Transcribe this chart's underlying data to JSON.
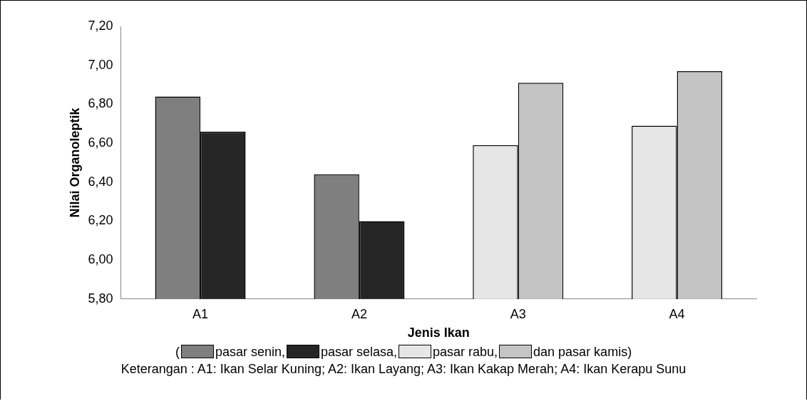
{
  "chart_data": {
    "type": "bar",
    "xlabel": "Jenis Ikan",
    "ylabel": "Nilai Organoleptik",
    "legend_title": "(",
    "categories": [
      "A1",
      "A2",
      "A3",
      "A4"
    ],
    "series": [
      {
        "name": "pasar senin,",
        "color": "#7f7f7f",
        "values": [
          6.84,
          6.44,
          null,
          null
        ]
      },
      {
        "name": "pasar selasa,",
        "color": "#262626",
        "values": [
          6.66,
          6.2,
          null,
          null
        ]
      },
      {
        "name": "pasar rabu,",
        "color": "#e6e6e6",
        "values": [
          null,
          null,
          6.59,
          6.69
        ]
      },
      {
        "name": "dan pasar kamis)",
        "color": "#c4c4c4",
        "values": [
          null,
          null,
          6.91,
          6.97
        ]
      }
    ],
    "ylim": [
      5.8,
      7.2
    ],
    "yticks": [
      {
        "value": 5.8,
        "label": "5,80"
      },
      {
        "value": 6.0,
        "label": "6,00"
      },
      {
        "value": 6.2,
        "label": "6,20"
      },
      {
        "value": 6.4,
        "label": "6,40"
      },
      {
        "value": 6.6,
        "label": "6,60"
      },
      {
        "value": 6.8,
        "label": "6,80"
      },
      {
        "value": 7.0,
        "label": "7,00"
      },
      {
        "value": 7.2,
        "label": "7,20"
      }
    ],
    "grid": false,
    "legend": "bottom",
    "annotations": [
      "Keterangan : A1: Ikan Selar Kuning; A2: Ikan Layang; A3: Ikan Kakap Merah; A4: Ikan Kerapu Sunu"
    ]
  }
}
